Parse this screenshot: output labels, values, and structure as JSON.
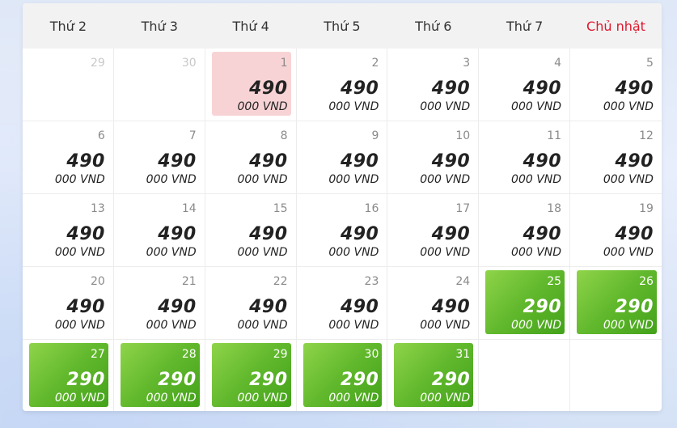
{
  "weekdays": [
    "Thứ 2",
    "Thứ 3",
    "Thứ 4",
    "Thứ 5",
    "Thứ 6",
    "Thứ 7",
    "Chủ nhật"
  ],
  "colors": {
    "sunday": "#e0182d",
    "selected": "#f8d3d5",
    "promo": "#61b82c"
  },
  "days": [
    {
      "day": "29",
      "price": "",
      "currency": "",
      "state": "other"
    },
    {
      "day": "30",
      "price": "",
      "currency": "",
      "state": "other"
    },
    {
      "day": "1",
      "price": "490",
      "currency": "000 VND",
      "state": "selected"
    },
    {
      "day": "2",
      "price": "490",
      "currency": "000 VND",
      "state": "normal"
    },
    {
      "day": "3",
      "price": "490",
      "currency": "000 VND",
      "state": "normal"
    },
    {
      "day": "4",
      "price": "490",
      "currency": "000 VND",
      "state": "normal"
    },
    {
      "day": "5",
      "price": "490",
      "currency": "000 VND",
      "state": "normal"
    },
    {
      "day": "6",
      "price": "490",
      "currency": "000 VND",
      "state": "normal"
    },
    {
      "day": "7",
      "price": "490",
      "currency": "000 VND",
      "state": "normal"
    },
    {
      "day": "8",
      "price": "490",
      "currency": "000 VND",
      "state": "normal"
    },
    {
      "day": "9",
      "price": "490",
      "currency": "000 VND",
      "state": "normal"
    },
    {
      "day": "10",
      "price": "490",
      "currency": "000 VND",
      "state": "normal"
    },
    {
      "day": "11",
      "price": "490",
      "currency": "000 VND",
      "state": "normal"
    },
    {
      "day": "12",
      "price": "490",
      "currency": "000 VND",
      "state": "normal"
    },
    {
      "day": "13",
      "price": "490",
      "currency": "000 VND",
      "state": "normal"
    },
    {
      "day": "14",
      "price": "490",
      "currency": "000 VND",
      "state": "normal"
    },
    {
      "day": "15",
      "price": "490",
      "currency": "000 VND",
      "state": "normal"
    },
    {
      "day": "16",
      "price": "490",
      "currency": "000 VND",
      "state": "normal"
    },
    {
      "day": "17",
      "price": "490",
      "currency": "000 VND",
      "state": "normal"
    },
    {
      "day": "18",
      "price": "490",
      "currency": "000 VND",
      "state": "normal"
    },
    {
      "day": "19",
      "price": "490",
      "currency": "000 VND",
      "state": "normal"
    },
    {
      "day": "20",
      "price": "490",
      "currency": "000 VND",
      "state": "normal"
    },
    {
      "day": "21",
      "price": "490",
      "currency": "000 VND",
      "state": "normal"
    },
    {
      "day": "22",
      "price": "490",
      "currency": "000 VND",
      "state": "normal"
    },
    {
      "day": "23",
      "price": "490",
      "currency": "000 VND",
      "state": "normal"
    },
    {
      "day": "24",
      "price": "490",
      "currency": "000 VND",
      "state": "normal"
    },
    {
      "day": "25",
      "price": "290",
      "currency": "000 VND",
      "state": "promo"
    },
    {
      "day": "26",
      "price": "290",
      "currency": "000 VND",
      "state": "promo"
    },
    {
      "day": "27",
      "price": "290",
      "currency": "000 VND",
      "state": "promo"
    },
    {
      "day": "28",
      "price": "290",
      "currency": "000 VND",
      "state": "promo"
    },
    {
      "day": "29",
      "price": "290",
      "currency": "000 VND",
      "state": "promo"
    },
    {
      "day": "30",
      "price": "290",
      "currency": "000 VND",
      "state": "promo"
    },
    {
      "day": "31",
      "price": "290",
      "currency": "000 VND",
      "state": "promo"
    },
    {
      "day": "",
      "price": "",
      "currency": "",
      "state": "empty"
    },
    {
      "day": "",
      "price": "",
      "currency": "",
      "state": "empty"
    }
  ]
}
